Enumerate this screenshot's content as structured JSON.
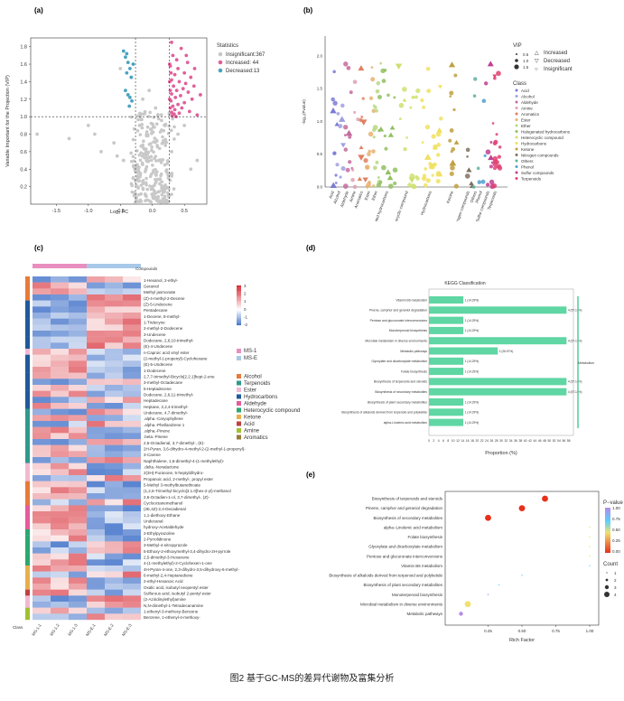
{
  "caption": "图2  基于GC-MS的差异代谢物及富集分析",
  "panels": {
    "a": {
      "label": "(a)",
      "xlabel": "Log₂ FC",
      "ylabel": "Variable Important for the Projection (VIP)",
      "xticks": [
        "-1.5",
        "-1.0",
        "-0.5",
        "0.0",
        "0.5"
      ],
      "yticks": [
        "0.2",
        "0.4",
        "0.6",
        "0.8",
        "1.0",
        "1.2",
        "1.4",
        "1.6",
        "1.8"
      ],
      "legend_title": "Statistics",
      "legend": [
        {
          "label": "Insignificant:367",
          "color": "#c8c8c8"
        },
        {
          "label": "Increased: 44",
          "color": "#e0609a"
        },
        {
          "label": "Decreased:13",
          "color": "#4aa3c0"
        }
      ]
    },
    "b": {
      "label": "(b)",
      "ylabel": "-log₁₀(Pvalue)",
      "yticks": [
        "0.0",
        "0.5",
        "1.0",
        "1.5",
        "2.0"
      ],
      "legend_shape_title": "",
      "shapes": [
        {
          "symbol": "△",
          "label": "Increased"
        },
        {
          "symbol": "▽",
          "label": "Decreased"
        },
        {
          "symbol": "○",
          "label": "Insignificant"
        }
      ],
      "vip_title": "VIP",
      "vip": [
        "0.5",
        "1.0",
        "1.5"
      ],
      "class_title": "Class",
      "classes": [
        {
          "label": "Acid",
          "color": "#7b7bd6"
        },
        {
          "label": "Alcohol",
          "color": "#a0a0e0"
        },
        {
          "label": "Aldehyde",
          "color": "#c46b9c"
        },
        {
          "label": "Amine",
          "color": "#e0a0b0"
        },
        {
          "label": "Aromatics",
          "color": "#e08060"
        },
        {
          "label": "Ester",
          "color": "#e8b070"
        },
        {
          "label": "Ether",
          "color": "#b8d880"
        },
        {
          "label": "Halogenated hydrocarbons",
          "color": "#90c060"
        },
        {
          "label": "Heterocyclic compound",
          "color": "#d0e070"
        },
        {
          "label": "Hydrocarbons",
          "color": "#f0e060"
        },
        {
          "label": "Ketone",
          "color": "#c0a040"
        },
        {
          "label": "Nitrogen compounds",
          "color": "#807060"
        },
        {
          "label": "Others",
          "color": "#60b0a0"
        },
        {
          "label": "Phenol",
          "color": "#50a0d0"
        },
        {
          "label": "Sulfur compounds",
          "color": "#c04090"
        },
        {
          "label": "Terpenoids",
          "color": "#e04070"
        }
      ],
      "xcats": [
        "Acid",
        "Alcohol",
        "Aldehyde",
        "Amine",
        "Aromatics",
        "Ester",
        "Ether",
        "Halogenated hydrocarbons",
        "Heterocyclic compound",
        "Hydrocarbons",
        "Ketone",
        "Nitrogen compounds",
        "Others",
        "Phenol",
        "Sulfur compounds",
        "Terpenoids"
      ]
    },
    "c": {
      "label": "(c)",
      "compounds_label": "Compounds",
      "class_label": "Class",
      "scale": [
        "3",
        "2",
        "1",
        "0",
        "-1",
        "-2"
      ],
      "groups": [
        {
          "label": "MS-1",
          "color": "#e88fbf"
        },
        {
          "label": "MS-E",
          "color": "#a8c8e8"
        }
      ],
      "class_legend": [
        {
          "label": "Alcohol",
          "color": "#e87a3a"
        },
        {
          "label": "Terpenoids",
          "color": "#2f9a8a"
        },
        {
          "label": "Ester",
          "color": "#f2b8d2"
        },
        {
          "label": "Hydrocarbons",
          "color": "#1f5a9a"
        },
        {
          "label": "Aldehyde",
          "color": "#e85a9a"
        },
        {
          "label": "Heterocyclic compound",
          "color": "#2aa870"
        },
        {
          "label": "Ketone",
          "color": "#e8b04a"
        },
        {
          "label": "Acid",
          "color": "#c04040"
        },
        {
          "label": "Amine",
          "color": "#a0c030"
        },
        {
          "label": "Aromatics",
          "color": "#9a7a3a"
        }
      ],
      "samples": [
        "MS-1-1",
        "MS-1-2",
        "MS-1-3",
        "MS-E-1",
        "MS-E-2",
        "MS-E-3"
      ],
      "rows": [
        "1-Hexanol, 2-ethyl-",
        "Geraniol",
        "Methyl jasmonate",
        "(Z)-4-methyl-2-Decene",
        "(Z)-5-Undecene",
        "Pentadecane",
        "1-Decene, 8-methyl-",
        "1-Tridecyne",
        "2-methyl-2-Dodecene",
        "3-Undecene",
        "Dodecane, 2,6,10-trimethyl-",
        "(E)-4-Undecene",
        "n-Caproic acid vinyl ester",
        "(2-methyl-1-propenyl)-Cyclohexane",
        "(E)-5-Undecene",
        "1-Dodecene",
        "2,7,7-trimethyl-Bicyclo[2.2.1]hept-2-ene",
        "3-methyl-Octadecane",
        "5-Heptadecene",
        "Dodecane, 2,6,11-trimethyl-",
        "Heptadecane",
        "Heptane, 2,2,4-trimethyl-",
        "Undecane, 4,7-dimethyl-",
        ".alpha.-Caryophyllene",
        ".alpha.-Phellandrene 1",
        ".alpha.-Pinene",
        ".beta.-Pinene",
        "2,6-Octadienal, 3,7-dimethyl-, (E)-",
        "2H-Pyran, 3,6-dihydro-4-methyl-2-(2-methyl-1-propenyl)-",
        "3-Carene",
        "Naphthalene, 1,6-dimethyl-4-(1-methylethyl)-",
        ".delta.-Nonalactone",
        "2(3H)-Furanone, 5-heptyldihydro-",
        "Propanoic acid, 2-methyl-, propyl ester",
        "5-Methyl 3-methylbutanethioate",
        "(1,2,6-Trimethyl-bicyclo[3.1.0]hex-2-yl)-methanol",
        "2,6-Octadien-1-ol, 3,7-dimethyl-, (Z)-",
        "Cyclooctanemethanol",
        "(2E,4Z)-2,4-Decadienal",
        "1,1-diethoxy-Ethane",
        "Undecanal",
        "hydroxy-Acetaldehyde",
        "2-Ethylpyrazoline",
        "2-Pyrrolidinone",
        "3-Methyl-4-nitropyrazole",
        "5-Ethoxy-2-ethoxymethyl-3,4-dihydro-2H-pyrrole",
        "2,5-dimethyl-3-Hexanone",
        "4-(1-methylethyl)-2-Cyclohexen-1-one",
        "4H-Pyran-4-one, 2,3-dihydro-3,5-dihydroxy-6-methyl-",
        "6-methyl-2,4-Heptanedione",
        "2-ethyl-Hexanoic Acid",
        "Oxalic acid, isobutyl neopentyl ester",
        "Sulfurous acid, isobutyl 2-pentyl ester",
        "(2-Aziridinylethyl)amine",
        "N,N-dimethyl-1-Tetradecanamine",
        "1-ethenyl-3-methoxy-Benzene",
        "Benzene, 1-ethenyl-4-methoxy-"
      ]
    },
    "d": {
      "label": "(d)",
      "title": "KEGG Classification",
      "xlabel": "Proportion (%)",
      "side_label": "Metabolism",
      "bars": [
        {
          "name": "Vitamin B6 metabolism",
          "value": 14.29,
          "text": "1 (14.29%)"
        },
        {
          "name": "Pinene, camphor and geraniol degradation",
          "value": 57.14,
          "text": "4 (57.14%)"
        },
        {
          "name": "Pentose and glucuronate interconversions",
          "value": 14.29,
          "text": "1 (14.29%)"
        },
        {
          "name": "Monoterpenoid biosynthesis",
          "value": 14.29,
          "text": "1 (14.29%)"
        },
        {
          "name": "Microbial metabolism in diverse environments",
          "value": 57.14,
          "text": "4 (57.14%)"
        },
        {
          "name": "Metabolic pathways",
          "value": 28.57,
          "text": "2 (28.57%)"
        },
        {
          "name": "Glyoxylate and dicarboxylate metabolism",
          "value": 14.29,
          "text": "1 (14.29%)"
        },
        {
          "name": "Folate biosynthesis",
          "value": 14.29,
          "text": "1 (14.29%)"
        },
        {
          "name": "Biosynthesis of terpenoids and steroids",
          "value": 57.14,
          "text": "4 (57.14%)"
        },
        {
          "name": "Biosynthesis of secondary metabolites",
          "value": 57.14,
          "text": "4 (57.14%)"
        },
        {
          "name": "Biosynthesis of plant secondary metabolites",
          "value": 14.29,
          "text": "1 (14.29%)"
        },
        {
          "name": "Biosynthesis of alkaloids derived from terpenoid and polyketide",
          "value": 14.29,
          "text": "1 (14.29%)"
        },
        {
          "name": "alpha-Linolenic acid metabolism",
          "value": 14.29,
          "text": "1 (14.29%)"
        }
      ],
      "xticks": [
        "0",
        "2",
        "4",
        "6",
        "8",
        "10",
        "12",
        "14",
        "16",
        "18",
        "20",
        "22",
        "24",
        "26",
        "28",
        "30",
        "32",
        "34",
        "36",
        "38",
        "40",
        "42",
        "44",
        "46",
        "48",
        "50",
        "52",
        "54",
        "56",
        "58"
      ]
    },
    "e": {
      "label": "(e)",
      "xlabel": "Rich Factor",
      "xticks": [
        "0.25",
        "0.50",
        "0.75",
        "1.00"
      ],
      "pval_title": "P−value",
      "pval_ticks": [
        "1.00",
        "0.75",
        "0.50",
        "0.25",
        "0.00"
      ],
      "count_title": "Count",
      "count_ticks": [
        "1",
        "2",
        "3",
        "4"
      ],
      "terms": [
        {
          "name": "Biosynthesis of terpenoids and steroids",
          "rich": 0.67,
          "count": 4,
          "p": 0.01
        },
        {
          "name": "Pinene, camphor and geraniol degradation",
          "rich": 0.5,
          "count": 4,
          "p": 0.02
        },
        {
          "name": "Biosynthesis of secondary metabolites",
          "rich": 0.25,
          "count": 4,
          "p": 0.08
        },
        {
          "name": "alpha−Linolenic acid metabolism",
          "rich": 1.0,
          "count": 1,
          "p": 0.5
        },
        {
          "name": "Folate biosynthesis",
          "rich": 1.0,
          "count": 1,
          "p": 0.5
        },
        {
          "name": "Glyoxylate and dicarboxylate metabolism",
          "rich": 1.0,
          "count": 1,
          "p": 0.55
        },
        {
          "name": "Pentose and glucuronate interconversions",
          "rich": 1.0,
          "count": 1,
          "p": 0.55
        },
        {
          "name": "Vitamin B6 metabolism",
          "rich": 1.0,
          "count": 1,
          "p": 0.6
        },
        {
          "name": "Biosynthesis of alkaloids derived from terpenoid and polyketide",
          "rich": 0.5,
          "count": 1,
          "p": 0.7
        },
        {
          "name": "Biosynthesis of plant secondary metabolites",
          "rich": 0.33,
          "count": 1,
          "p": 0.75
        },
        {
          "name": "Monoterpenoid biosynthesis",
          "rich": 0.25,
          "count": 1,
          "p": 0.8
        },
        {
          "name": "Microbial metabolism in diverse environments",
          "rich": 0.1,
          "count": 4,
          "p": 0.45
        },
        {
          "name": "Metabolic pathways",
          "rich": 0.05,
          "count": 2,
          "p": 0.9
        }
      ]
    }
  },
  "chart_data": [
    {
      "type": "scatter",
      "title": "(a)",
      "xlabel": "Log₂ FC",
      "ylabel": "Variable Important for the Projection (VIP)",
      "xlim": [
        -1.9,
        0.85
      ],
      "ylim": [
        0.0,
        1.9
      ],
      "series": [
        {
          "name": "Decreased:13",
          "points": [
            [
              -0.45,
              1.75
            ],
            [
              -0.4,
              1.72
            ],
            [
              -0.42,
              1.68
            ],
            [
              -0.38,
              1.62
            ],
            [
              -0.35,
              1.55
            ],
            [
              -0.3,
              1.6
            ],
            [
              -0.4,
              1.5
            ],
            [
              -0.33,
              1.45
            ],
            [
              -0.42,
              1.3
            ],
            [
              -0.38,
              1.25
            ],
            [
              -0.35,
              1.22
            ],
            [
              -0.32,
              1.18
            ],
            [
              -0.36,
              1.12
            ]
          ]
        },
        {
          "name": "Increased: 44",
          "points": [
            [
              0.3,
              1.85
            ],
            [
              0.45,
              1.78
            ],
            [
              0.32,
              1.7
            ],
            [
              0.38,
              1.65
            ],
            [
              0.55,
              1.62
            ],
            [
              0.28,
              1.58
            ],
            [
              0.4,
              1.55
            ],
            [
              0.5,
              1.5
            ],
            [
              0.35,
              1.48
            ],
            [
              0.6,
              1.45
            ],
            [
              0.3,
              1.42
            ],
            [
              0.42,
              1.4
            ],
            [
              0.52,
              1.38
            ],
            [
              0.33,
              1.35
            ],
            [
              0.48,
              1.32
            ],
            [
              0.38,
              1.3
            ],
            [
              0.56,
              1.28
            ],
            [
              0.3,
              1.26
            ],
            [
              0.44,
              1.24
            ],
            [
              0.36,
              1.22
            ],
            [
              0.62,
              1.2
            ],
            [
              0.29,
              1.18
            ],
            [
              0.5,
              1.16
            ],
            [
              0.4,
              1.14
            ],
            [
              0.32,
              1.12
            ],
            [
              0.46,
              1.1
            ],
            [
              0.35,
              1.08
            ],
            [
              0.58,
              1.06
            ],
            [
              0.3,
              1.05
            ],
            [
              0.42,
              1.04
            ],
            [
              0.34,
              1.03
            ],
            [
              0.7,
              1.02
            ],
            [
              0.31,
              1.01
            ],
            [
              0.37,
              1.0
            ],
            [
              0.27,
              1.6
            ],
            [
              0.29,
              1.5
            ],
            [
              0.27,
              1.4
            ],
            [
              0.28,
              1.3
            ],
            [
              0.27,
              1.2
            ],
            [
              0.28,
              1.1
            ],
            [
              0.65,
              1.35
            ],
            [
              0.75,
              1.25
            ],
            [
              0.66,
              1.55
            ],
            [
              0.53,
              1.7
            ]
          ]
        },
        {
          "name": "Insignificant:367",
          "points": [
            [
              -1.8,
              0.8
            ],
            [
              -1.3,
              0.75
            ],
            [
              -1.0,
              0.9
            ],
            [
              -0.9,
              0.8
            ],
            [
              -0.8,
              0.6
            ],
            [
              -0.6,
              0.7
            ],
            [
              -0.55,
              0.55
            ],
            [
              -0.5,
              1.55
            ],
            [
              -0.45,
              0.5
            ],
            [
              -0.3,
              0.3
            ],
            [
              -0.2,
              0.9
            ],
            [
              -0.1,
              0.4
            ],
            [
              0.0,
              0.2
            ],
            [
              0.1,
              0.5
            ],
            [
              0.2,
              0.7
            ],
            [
              0.25,
              0.3
            ],
            [
              0.3,
              0.6
            ],
            [
              0.4,
              0.8
            ],
            [
              0.5,
              0.9
            ],
            [
              0.6,
              0.4
            ],
            [
              0.7,
              0.5
            ],
            [
              -0.15,
              1.2
            ],
            [
              -0.05,
              1.3
            ],
            [
              0.05,
              1.1
            ]
          ]
        }
      ]
    }
  ]
}
